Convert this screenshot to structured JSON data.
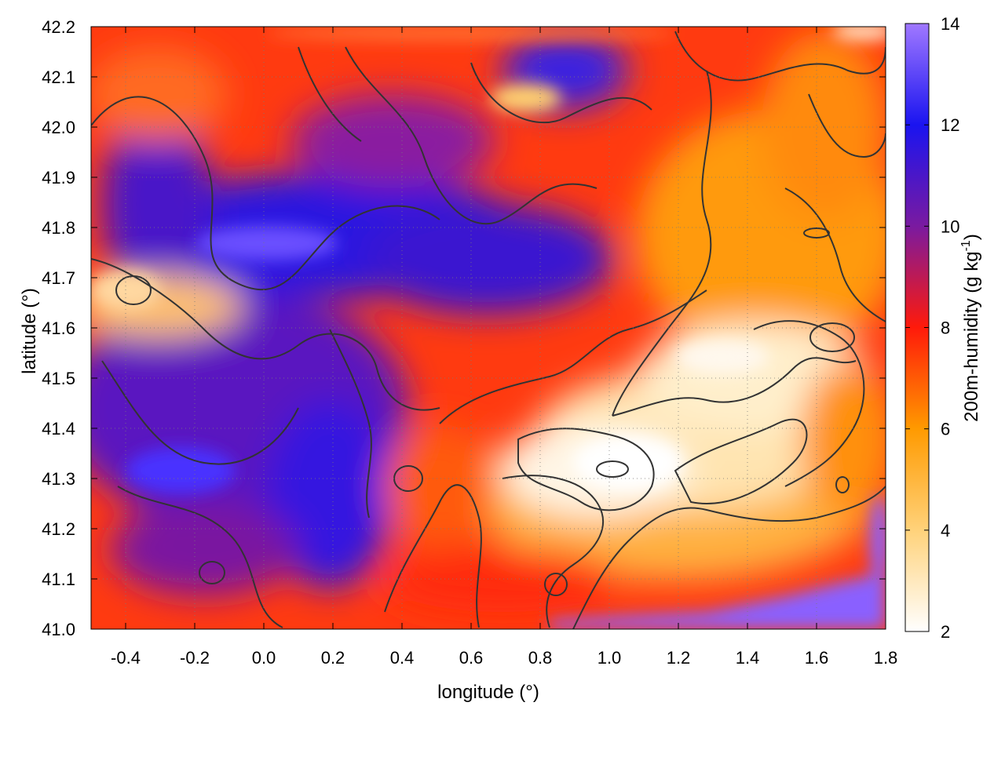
{
  "chart_data": {
    "type": "heatmap",
    "title": "",
    "xlabel": "longitude (°)",
    "ylabel": "latitude (°)",
    "colorbar_label": "200m-humidity (g kg-1)",
    "colorbar_label_main": "200m-humidity (g kg",
    "colorbar_label_sup": "-1",
    "colorbar_label_end": ")",
    "xlim": [
      -0.5,
      1.8
    ],
    "ylim": [
      41.0,
      42.2
    ],
    "clim": [
      2,
      14
    ],
    "x_ticks": [
      -0.4,
      -0.2,
      0.0,
      0.2,
      0.4,
      0.6,
      0.8,
      1.0,
      1.2,
      1.4,
      1.6,
      1.8
    ],
    "x_tick_labels": [
      "-0.4",
      "-0.2",
      "0.0",
      "0.2",
      "0.4",
      "0.6",
      "0.8",
      "1.0",
      "1.2",
      "1.4",
      "1.6",
      "1.8"
    ],
    "y_ticks": [
      41.0,
      41.1,
      41.2,
      41.3,
      41.4,
      41.5,
      41.6,
      41.7,
      41.8,
      41.9,
      42.0,
      42.1,
      42.2
    ],
    "y_tick_labels": [
      "41.0",
      "41.1",
      "41.2",
      "41.3",
      "41.4",
      "41.5",
      "41.6",
      "41.7",
      "41.8",
      "41.9",
      "42.0",
      "42.1",
      "42.2"
    ],
    "colorbar_ticks": [
      2,
      4,
      6,
      8,
      10,
      12,
      14
    ],
    "colorbar_tick_labels": [
      "2",
      "4",
      "6",
      "8",
      "10",
      "12",
      "14"
    ],
    "colormap": [
      {
        "value": 2,
        "color": "#ffffff"
      },
      {
        "value": 4,
        "color": "#ffd27a"
      },
      {
        "value": 6,
        "color": "#ff9a00"
      },
      {
        "value": 8,
        "color": "#ff1a0a"
      },
      {
        "value": 10,
        "color": "#7a1aa0"
      },
      {
        "value": 12,
        "color": "#1a14f0"
      },
      {
        "value": 14,
        "color": "#a078ff"
      }
    ],
    "grid": true,
    "contour_color": "#333333",
    "field_features": [
      {
        "desc": "dry plume core",
        "lon": 0.95,
        "lat": 41.33,
        "value": 2.5
      },
      {
        "desc": "dry plume",
        "lon": 1.3,
        "lat": 41.5,
        "value": 3.0
      },
      {
        "desc": "dry tongue west",
        "lon": -0.35,
        "lat": 41.66,
        "value": 4.0
      },
      {
        "desc": "moist band",
        "lon": 0.1,
        "lat": 41.8,
        "value": 11.5
      },
      {
        "desc": "moist west",
        "lon": -0.25,
        "lat": 41.35,
        "value": 10.5
      },
      {
        "desc": "moist north",
        "lon": 0.9,
        "lat": 42.12,
        "value": 11.0
      },
      {
        "desc": "moist south coast",
        "lon": 1.5,
        "lat": 41.05,
        "value": 13.0
      },
      {
        "desc": "humid east",
        "lon": 1.6,
        "lat": 41.8,
        "value": 5.5
      }
    ]
  }
}
